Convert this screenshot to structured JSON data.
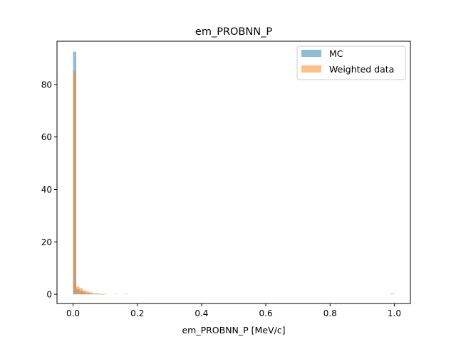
{
  "chart_data": {
    "type": "bar",
    "title": "em_PROBNN_P",
    "xlabel": "em_PROBNN_P [MeV/c]",
    "ylabel": "",
    "xlim": [
      -0.05,
      1.05
    ],
    "ylim": [
      -3.5,
      96.5
    ],
    "xticks": [
      0.0,
      0.2,
      0.4,
      0.6,
      0.8,
      1.0
    ],
    "xtick_labels": [
      "0.0",
      "0.2",
      "0.4",
      "0.6",
      "0.8",
      "1.0"
    ],
    "yticks": [
      0,
      20,
      40,
      60,
      80
    ],
    "ytick_labels": [
      "0",
      "20",
      "40",
      "60",
      "80"
    ],
    "bin_width": 0.01,
    "legend_position": "top-right",
    "grid": false,
    "series": [
      {
        "name": "MC",
        "color": "#1f77b4",
        "opacity": 0.5,
        "bins": [
          {
            "x": 0.0,
            "y": 92.5
          },
          {
            "x": 0.01,
            "y": 2.0
          },
          {
            "x": 0.02,
            "y": 1.4
          },
          {
            "x": 0.03,
            "y": 0.9
          },
          {
            "x": 0.04,
            "y": 0.5
          },
          {
            "x": 0.05,
            "y": 0.3
          },
          {
            "x": 0.06,
            "y": 0.2
          },
          {
            "x": 0.07,
            "y": 0.15
          },
          {
            "x": 0.08,
            "y": 0.1
          },
          {
            "x": 0.09,
            "y": 0.05
          }
        ]
      },
      {
        "name": "Weighted data",
        "color": "#ff7f0e",
        "opacity": 0.5,
        "bins": [
          {
            "x": 0.0,
            "y": 85.0
          },
          {
            "x": 0.01,
            "y": 3.0
          },
          {
            "x": 0.02,
            "y": 2.4
          },
          {
            "x": 0.03,
            "y": 1.5
          },
          {
            "x": 0.04,
            "y": 1.2
          },
          {
            "x": 0.05,
            "y": 0.8
          },
          {
            "x": 0.06,
            "y": 0.4
          },
          {
            "x": 0.07,
            "y": 0.4
          },
          {
            "x": 0.08,
            "y": 0.2
          },
          {
            "x": 0.09,
            "y": 0.1
          },
          {
            "x": 0.13,
            "y": 0.2
          },
          {
            "x": 0.16,
            "y": 0.25
          },
          {
            "x": 0.99,
            "y": 0.4
          }
        ]
      }
    ]
  }
}
